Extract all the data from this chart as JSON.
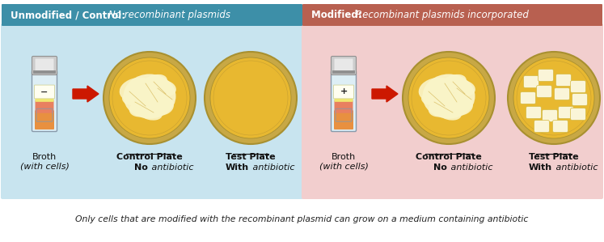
{
  "left_header_bold": "Unmodified / Control: ",
  "left_header_italic": "No recombinant plasmids",
  "right_header_bold": "Modified: ",
  "right_header_italic": "Recombinant plasmids incorporated",
  "left_bg": "#c8e4ef",
  "right_bg": "#f2cece",
  "left_header_bg": "#3d8fa8",
  "right_header_bg": "#b86050",
  "arrow_color": "#cc1800",
  "plate_rim_color": "#c8a845",
  "plate_agar_color": "#e8b830",
  "plate_inner_rim": "#a89030",
  "lawn_color": "#f5e898",
  "colony_fill": "#faf5d8",
  "colony_edge": "#d4b840",
  "caption": "Only cells that are modified with the recombinant plasmid can grow on a medium containing antibiotic",
  "left_sign": "−",
  "right_sign": "+",
  "tube_cap_light": "#cccccc",
  "tube_cap_dark": "#909090",
  "tube_body_color": "#ddeef5",
  "tube_liquid_yellow": "#f0e870",
  "tube_liquid_orange": "#e89040",
  "tube_liquid_pink": "#e88060",
  "tube_outline": "#8899aa"
}
